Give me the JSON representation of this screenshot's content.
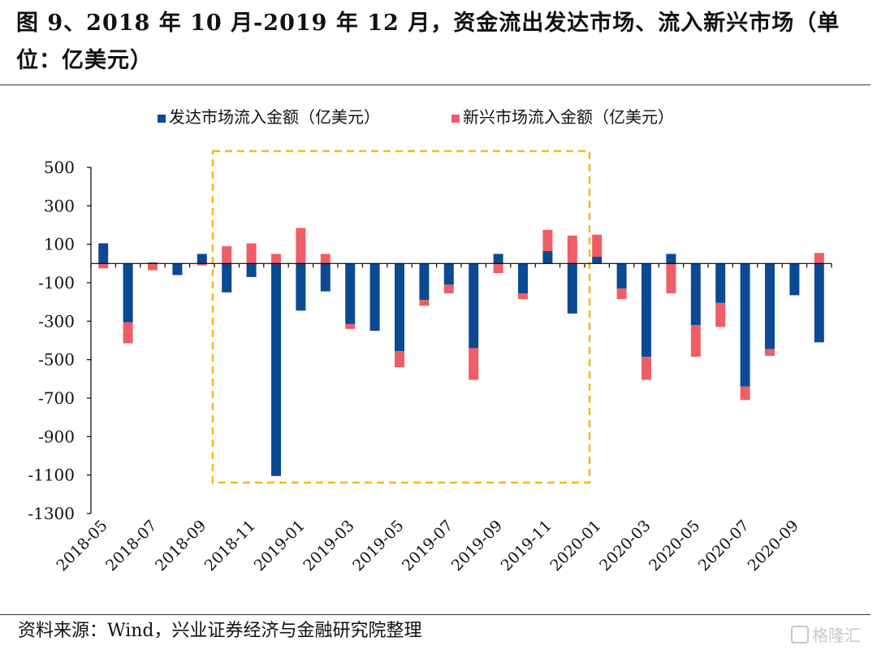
{
  "title": "图 9、2018 年 10 月-2019 年 12 月，资金流出发达市场、流入新兴市场（单位：亿美元）",
  "source": "资料来源：Wind，兴业证券经济与金融研究院整理",
  "watermark": "格隆汇",
  "colors": {
    "developed": "#0b4a93",
    "emerging": "#ef5e66",
    "highlight_box": "#f2b91e",
    "axis": "#000000"
  },
  "chart_data": {
    "type": "bar",
    "stacked": true,
    "categories": [
      "2018-05",
      "2018-06",
      "2018-07",
      "2018-08",
      "2018-09",
      "2018-10",
      "2018-11",
      "2018-12",
      "2019-01",
      "2019-02",
      "2019-03",
      "2019-04",
      "2019-05",
      "2019-06",
      "2019-07",
      "2019-08",
      "2019-09",
      "2019-10",
      "2019-11",
      "2019-12",
      "2020-01",
      "2020-02",
      "2020-03",
      "2020-04",
      "2020-05",
      "2020-06",
      "2020-07",
      "2020-08",
      "2020-09",
      "2020-10"
    ],
    "x_tick_labels": [
      "2018-05",
      "",
      "2018-07",
      "",
      "2018-09",
      "",
      "2018-11",
      "",
      "2019-01",
      "",
      "2019-03",
      "",
      "2019-05",
      "",
      "2019-07",
      "",
      "2019-09",
      "",
      "2019-11",
      "",
      "2020-01",
      "",
      "2020-03",
      "",
      "2020-05",
      "",
      "2020-07",
      "",
      "2020-09",
      ""
    ],
    "series": [
      {
        "name": "发达市场流入金额（亿美元）",
        "color": "#0b4a93",
        "values": [
          105,
          -305,
          5,
          -60,
          50,
          -150,
          -70,
          -1105,
          -245,
          -145,
          -315,
          -350,
          -455,
          -190,
          -110,
          -440,
          50,
          -155,
          65,
          -260,
          35,
          -130,
          -485,
          50,
          -320,
          -205,
          -640,
          -445,
          -165,
          -410
        ]
      },
      {
        "name": "新兴市场流入金额（亿美元）",
        "color": "#ef5e66",
        "values": [
          -25,
          -110,
          -35,
          0,
          -10,
          90,
          105,
          50,
          185,
          50,
          -25,
          0,
          -85,
          -30,
          -45,
          -165,
          -50,
          -30,
          110,
          145,
          115,
          -55,
          -120,
          -155,
          -165,
          -125,
          -70,
          -35,
          0,
          55
        ]
      }
    ],
    "ylim": [
      -1300,
      500
    ],
    "yticks": [
      500,
      300,
      100,
      -100,
      -300,
      -500,
      -700,
      -900,
      -1100,
      -1300
    ],
    "legend": "top-center",
    "grid": false,
    "highlight_range": [
      "2018-10",
      "2019-12"
    ]
  }
}
